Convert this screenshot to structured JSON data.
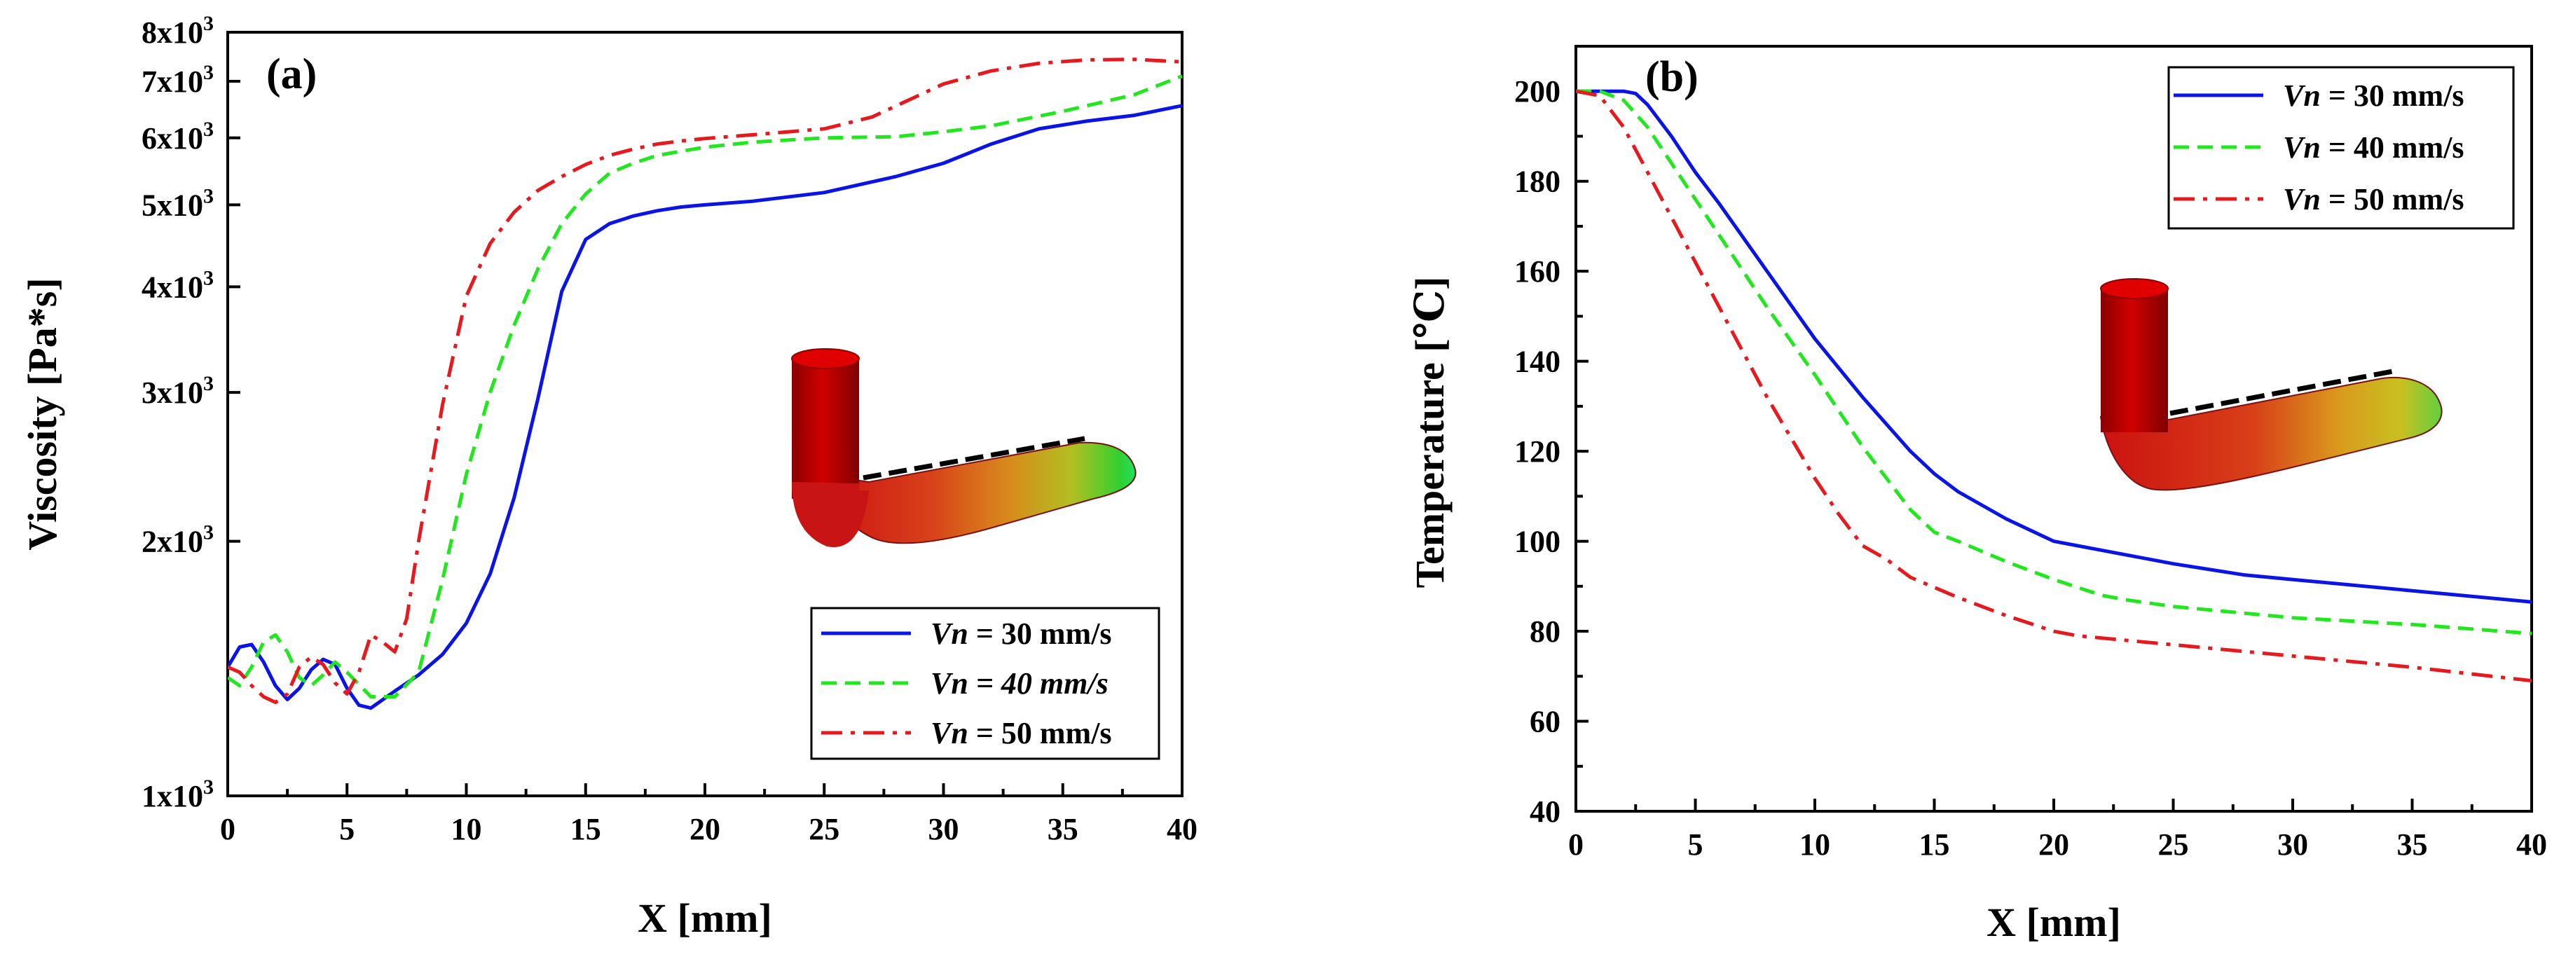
{
  "chart_data": [
    {
      "panel": "(a)",
      "type": "line",
      "xlabel": "X  [mm]",
      "ylabel": "Viscosity  [Pa*s]",
      "yscale": "log",
      "xlim": [
        0,
        40
      ],
      "ylim": [
        1000,
        8000
      ],
      "x_ticks": [
        "0",
        "5",
        "10",
        "15",
        "20",
        "25",
        "30",
        "35",
        "40"
      ],
      "y_ticks": [
        {
          "value": 1000,
          "mantissa": "1x10",
          "exp": "3"
        },
        {
          "value": 2000,
          "mantissa": "2x10",
          "exp": "3"
        },
        {
          "value": 3000,
          "mantissa": "3x10",
          "exp": "3"
        },
        {
          "value": 4000,
          "mantissa": "4x10",
          "exp": "3"
        },
        {
          "value": 5000,
          "mantissa": "5x10",
          "exp": "3"
        },
        {
          "value": 6000,
          "mantissa": "6x10",
          "exp": "3"
        },
        {
          "value": 7000,
          "mantissa": "7x10",
          "exp": "3"
        },
        {
          "value": 8000,
          "mantissa": "8x10",
          "exp": "3"
        }
      ],
      "legend": {
        "position": "bottom-right"
      },
      "inset": "L-shaped nozzle flow domain colored by viscosity",
      "series": [
        {
          "name": "Vn = 30 mm/s",
          "var": "Vn",
          "rest": " = 30 mm/s",
          "rest_italic": false,
          "color": "#0a14e6",
          "dash": "solid",
          "x": [
            0,
            0.5,
            1,
            1.5,
            2,
            2.5,
            3,
            3.5,
            4,
            4.5,
            5,
            5.5,
            6,
            7,
            8,
            9,
            10,
            11,
            12,
            13,
            14,
            15,
            16,
            17,
            18,
            19,
            20,
            22,
            25,
            28,
            30,
            32,
            34,
            36,
            38,
            40
          ],
          "y": [
            1420,
            1500,
            1510,
            1440,
            1350,
            1300,
            1340,
            1410,
            1450,
            1430,
            1340,
            1280,
            1270,
            1330,
            1390,
            1470,
            1600,
            1830,
            2250,
            2950,
            3950,
            4550,
            4750,
            4850,
            4920,
            4970,
            5000,
            5050,
            5170,
            5400,
            5600,
            5900,
            6150,
            6280,
            6380,
            6550
          ]
        },
        {
          "name": "Vn = 40 mm/s",
          "var": "Vn",
          "rest": " = 40 mm/s",
          "rest_italic": true,
          "color": "#22e61e",
          "dash": "dashed",
          "x": [
            0,
            0.5,
            1,
            1.5,
            2,
            2.5,
            3,
            3.5,
            4,
            4.5,
            5,
            6,
            7,
            8,
            9,
            10,
            11,
            12,
            13,
            14,
            15,
            16,
            17,
            18,
            20,
            22,
            25,
            28,
            30,
            32,
            35,
            38,
            40
          ],
          "y": [
            1380,
            1350,
            1420,
            1520,
            1550,
            1480,
            1380,
            1350,
            1390,
            1440,
            1400,
            1310,
            1310,
            1400,
            1800,
            2400,
            3000,
            3600,
            4200,
            4750,
            5150,
            5450,
            5600,
            5720,
            5850,
            5930,
            6000,
            6020,
            6100,
            6200,
            6450,
            6750,
            7100
          ]
        },
        {
          "name": "Vn = 50 mm/s",
          "var": "Vn",
          "rest": " = 50 mm/s",
          "rest_italic": false,
          "color": "#e6191e",
          "dash": "dashdot",
          "x": [
            0,
            0.5,
            1,
            1.5,
            2,
            2.5,
            3,
            3.5,
            4,
            4.5,
            5,
            5.5,
            6,
            6.5,
            7,
            7.5,
            8,
            9,
            10,
            11,
            12,
            13,
            14,
            15,
            16,
            17,
            18,
            19,
            20,
            22,
            25,
            27,
            30,
            32,
            34,
            36,
            38,
            40
          ],
          "y": [
            1420,
            1400,
            1350,
            1310,
            1290,
            1320,
            1420,
            1460,
            1430,
            1360,
            1320,
            1400,
            1550,
            1520,
            1480,
            1620,
            2000,
            2900,
            3900,
            4500,
            4900,
            5200,
            5400,
            5580,
            5720,
            5820,
            5900,
            5950,
            5990,
            6050,
            6150,
            6350,
            6950,
            7200,
            7350,
            7420,
            7430,
            7380
          ]
        }
      ]
    },
    {
      "panel": "(b)",
      "type": "line",
      "xlabel": "X  [mm]",
      "ylabel": "Temperature  [℃]",
      "xlim": [
        0,
        40
      ],
      "ylim": [
        40,
        210
      ],
      "x_ticks": [
        "0",
        "5",
        "10",
        "15",
        "20",
        "25",
        "30",
        "35",
        "40"
      ],
      "y_ticks": [
        "40",
        "60",
        "80",
        "100",
        "120",
        "140",
        "160",
        "180",
        "200"
      ],
      "legend": {
        "position": "top-right"
      },
      "inset": "L-shaped nozzle flow domain colored by temperature",
      "series": [
        {
          "name": "Vn = 30 mm/s",
          "var": "Vn",
          "rest": " = 30 mm/s",
          "rest_italic": false,
          "color": "#0a14e6",
          "dash": "solid",
          "x": [
            0,
            1,
            2,
            2.5,
            3,
            4,
            5,
            6,
            8,
            10,
            12,
            14,
            15,
            16,
            18,
            20,
            21,
            22,
            25,
            28,
            30,
            35,
            40
          ],
          "y": [
            200,
            200,
            200,
            199.5,
            197,
            190,
            182,
            175,
            160,
            145,
            132,
            120,
            115,
            111,
            105,
            100,
            99,
            98,
            95,
            92.5,
            91.5,
            89,
            86.5
          ]
        },
        {
          "name": "Vn = 40 mm/s",
          "var": "Vn",
          "rest": " = 40 mm/s",
          "rest_italic": false,
          "color": "#22e61e",
          "dash": "dashed",
          "x": [
            0,
            1,
            2,
            3,
            4,
            5,
            6,
            8,
            10,
            12,
            14,
            15,
            16,
            18,
            20,
            22,
            23,
            25,
            30,
            35,
            40
          ],
          "y": [
            200,
            200,
            198,
            192,
            184,
            176,
            168,
            152,
            137,
            121,
            107,
            102,
            100,
            95.5,
            91.5,
            88,
            87,
            85.5,
            83,
            81.5,
            79.5
          ]
        },
        {
          "name": "Vn = 50 mm/s",
          "var": "Vn",
          "rest": " = 50 mm/s",
          "rest_italic": false,
          "color": "#e6191e",
          "dash": "dashdot",
          "x": [
            0,
            1,
            2,
            3,
            4,
            5,
            6,
            8,
            10,
            11,
            12,
            13,
            14,
            16,
            18,
            20,
            21,
            25,
            30,
            35,
            40
          ],
          "y": [
            200,
            199,
            192,
            182,
            172,
            162,
            152,
            132,
            114,
            106,
            99,
            96,
            92,
            87.5,
            83.5,
            80,
            79,
            77,
            74.5,
            72,
            69
          ]
        }
      ]
    }
  ]
}
